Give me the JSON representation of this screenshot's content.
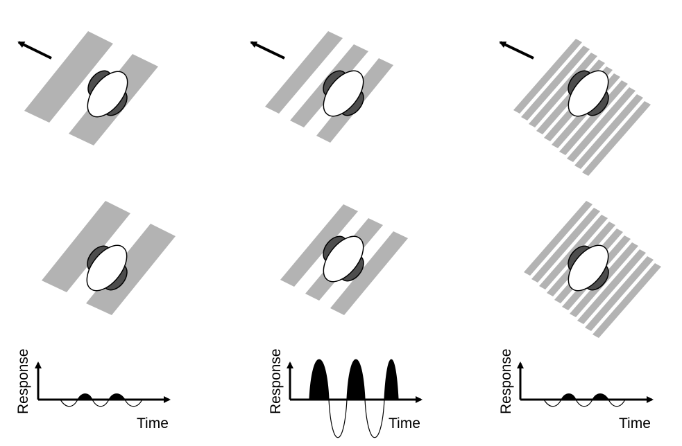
{
  "colors": {
    "grating": "#b3b3b3",
    "rf_off_lobe": "#4d4d4d",
    "rf_on_lobe": "#ffffff",
    "outline": "#000000",
    "response_fill": "#000000"
  },
  "icons": {
    "motion_arrow": "arrow-up-left-icon"
  },
  "panels": [
    {
      "id": "wide",
      "stripe_count": 2,
      "top_shows_arrow": true
    },
    {
      "id": "medium",
      "stripe_count": 3,
      "top_shows_arrow": true
    },
    {
      "id": "narrow",
      "stripe_count": 10,
      "top_shows_arrow": true
    }
  ],
  "response_plots": [
    {
      "ylabel": "Response",
      "xlabel": "Time",
      "peak_count": 2,
      "amplitude": "small"
    },
    {
      "ylabel": "Response",
      "xlabel": "Time",
      "peak_count": 3,
      "amplitude": "large"
    },
    {
      "ylabel": "Response",
      "xlabel": "Time",
      "peak_count": 2,
      "amplitude": "small"
    }
  ]
}
